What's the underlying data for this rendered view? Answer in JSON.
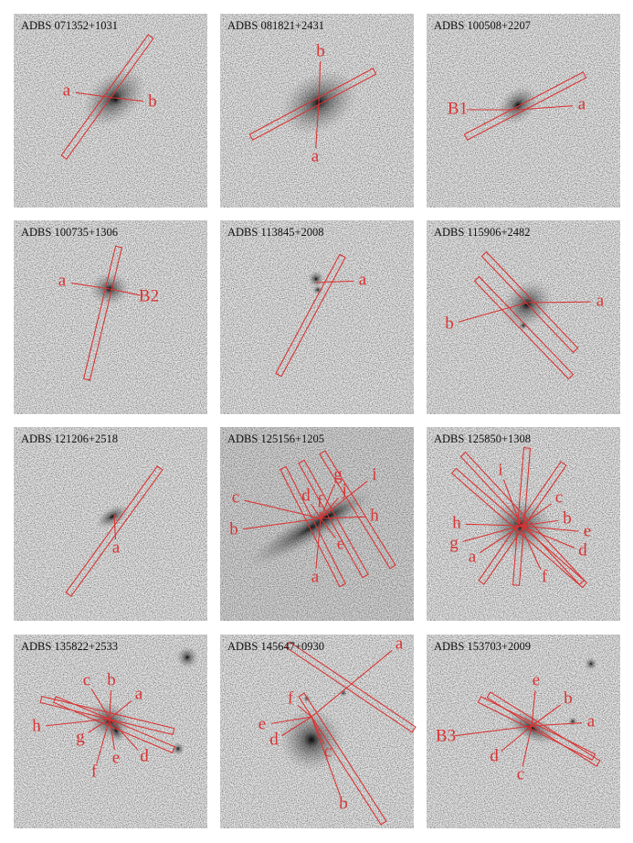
{
  "panels": [
    {
      "title": "ADBS 071352+1031",
      "labels": [
        "a",
        "b"
      ]
    },
    {
      "title": "ADBS 081821+2431",
      "labels": [
        "b",
        "a"
      ]
    },
    {
      "title": "ADBS 100508+2207",
      "labels": [
        "B1",
        "a"
      ]
    },
    {
      "title": "ADBS 100735+1306",
      "labels": [
        "a",
        "B2"
      ]
    },
    {
      "title": "ADBS 113845+2008",
      "labels": [
        "a"
      ]
    },
    {
      "title": "ADBS 115906+2482",
      "labels": [
        "a",
        "b"
      ]
    },
    {
      "title": "ADBS 121206+2518",
      "labels": [
        "a"
      ]
    },
    {
      "title": "ADBS 125156+1205",
      "labels": [
        "g",
        "i",
        "j",
        "c",
        "d",
        "f",
        "h",
        "b",
        "e",
        "a"
      ]
    },
    {
      "title": "ADBS 125850+1308",
      "labels": [
        "i",
        "c",
        "h",
        "b",
        "e",
        "g",
        "d",
        "a",
        "f"
      ]
    },
    {
      "title": "ADBS 135822+2533",
      "labels": [
        "c",
        "b",
        "a",
        "h",
        "g",
        "d",
        "e",
        "f"
      ]
    },
    {
      "title": "ADBS 145647+0930",
      "labels": [
        "a",
        "f",
        "e",
        "d",
        "c",
        "b"
      ]
    },
    {
      "title": "ADBS 153703+2009",
      "labels": [
        "e",
        "b",
        "a",
        "B3",
        "d",
        "c"
      ]
    }
  ]
}
